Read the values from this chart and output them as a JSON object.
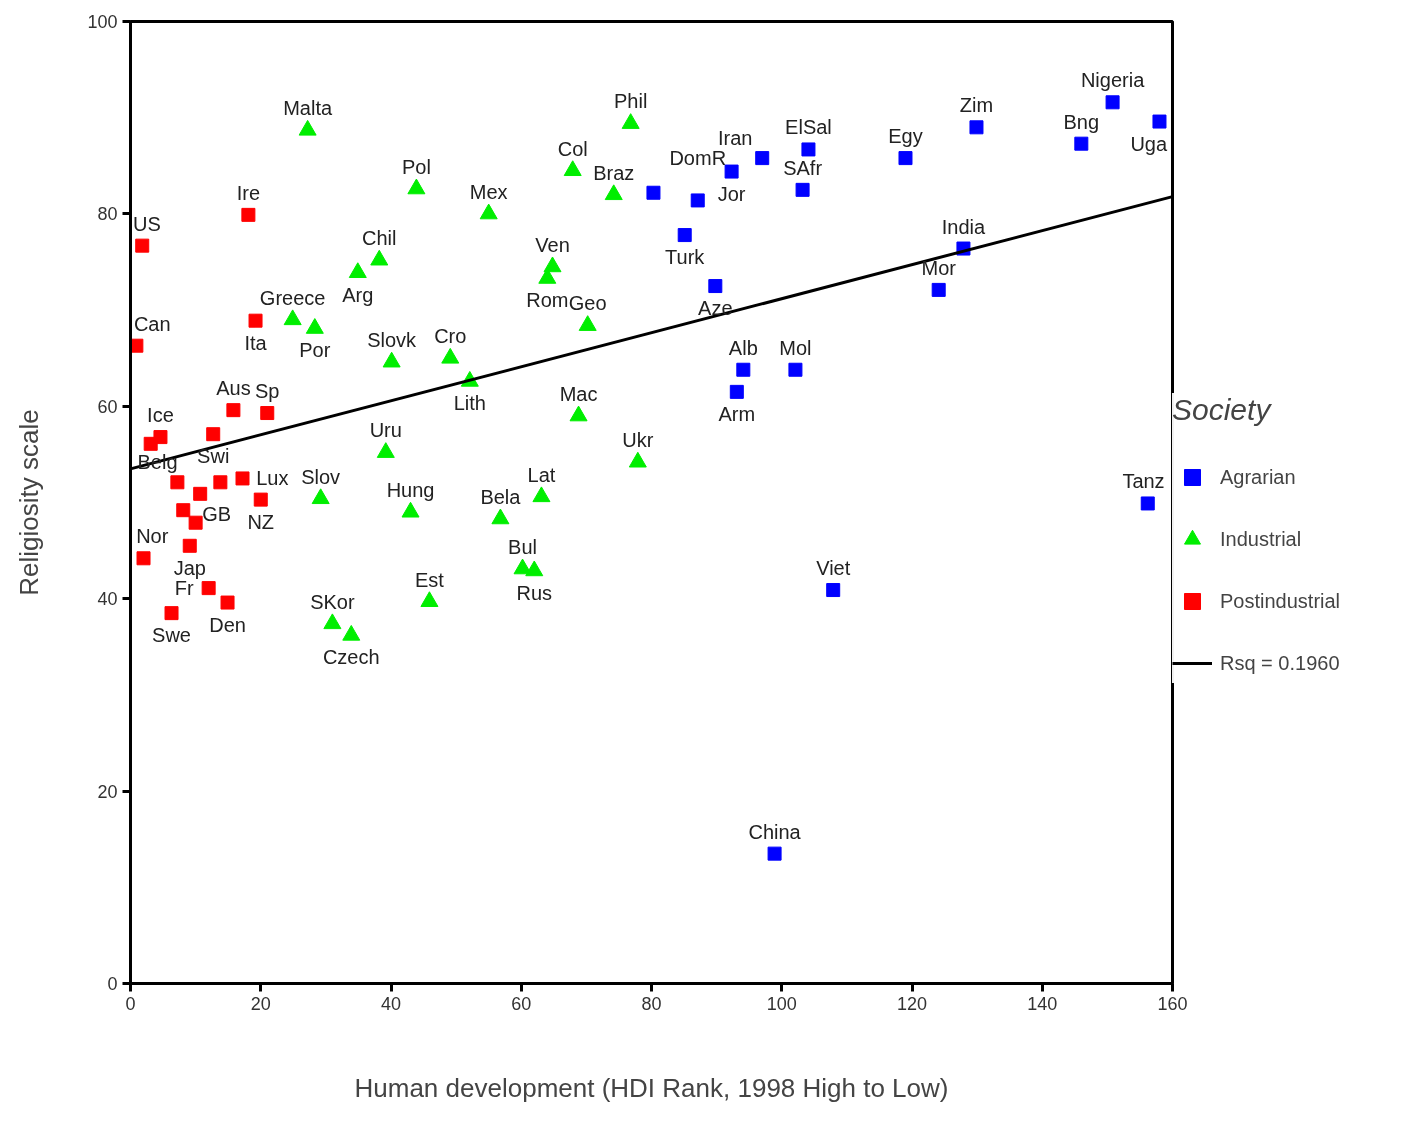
{
  "chart_data": {
    "type": "scatter",
    "xlabel": "Human development (HDI Rank, 1998 High to Low)",
    "ylabel": "Religiosity scale",
    "legend_title": "Society",
    "legend": "right",
    "grid": false,
    "xlim": [
      0,
      160
    ],
    "ylim": [
      0,
      100
    ],
    "xticks": [
      0,
      20,
      40,
      60,
      80,
      100,
      120,
      140,
      160
    ],
    "yticks": [
      0,
      20,
      40,
      60,
      80,
      100
    ],
    "series": [
      {
        "name": "Agrarian",
        "color": "#0000ff",
        "marker": "square",
        "x": [
          150.8,
          158.0,
          146.0,
          129.9,
          119.0,
          104.1,
          97.0,
          103.2,
          92.3,
          80.3,
          87.1,
          85.1,
          89.8,
          127.9,
          124.1,
          94.1,
          93.1,
          102.1,
          156.2,
          107.9,
          98.9
        ],
        "values": [
          91.6,
          89.6,
          87.3,
          89.0,
          85.8,
          86.7,
          85.8,
          82.5,
          84.4,
          82.2,
          81.4,
          77.8,
          72.5,
          76.4,
          72.1,
          63.8,
          61.5,
          63.8,
          49.9,
          40.9,
          13.5
        ]
      },
      {
        "name": "Industrial",
        "color": "#00ee00",
        "marker": "triangle",
        "x": [
          27.2,
          76.8,
          67.9,
          74.2,
          43.9,
          55.0,
          38.2,
          34.9,
          64.8,
          64.0,
          70.2,
          24.9,
          28.3,
          40.1,
          49.1,
          52.1,
          68.8,
          39.2,
          77.9,
          29.2,
          63.1,
          43.0,
          56.8,
          60.2,
          62.0,
          45.9,
          31.0,
          33.9
        ],
        "values": [
          88.7,
          89.4,
          84.5,
          82.0,
          82.6,
          80.0,
          75.2,
          73.9,
          74.5,
          73.3,
          68.4,
          69.0,
          68.1,
          64.6,
          65.0,
          62.6,
          59.0,
          55.2,
          54.2,
          50.4,
          50.6,
          49.0,
          48.3,
          43.1,
          42.9,
          39.7,
          37.4,
          36.2
        ]
      },
      {
        "name": "Postindustrial",
        "color": "#ff0000",
        "marker": "square",
        "x": [
          18.1,
          1.8,
          19.2,
          0.9,
          15.8,
          21.0,
          4.6,
          3.1,
          12.7,
          7.2,
          13.8,
          17.2,
          20.0,
          10.7,
          8.1,
          10.0,
          9.1,
          2.0,
          12.0,
          14.9,
          6.3
        ],
        "values": [
          79.9,
          76.7,
          68.9,
          66.3,
          59.6,
          59.3,
          56.8,
          56.1,
          57.1,
          52.1,
          52.1,
          52.5,
          50.3,
          50.9,
          49.2,
          47.9,
          45.5,
          44.2,
          41.1,
          39.6,
          38.5
        ]
      },
      {
        "type": "line",
        "color": "#000000",
        "x": [
          0,
          160
        ],
        "values": [
          53.5,
          81.8
        ]
      }
    ],
    "annotations": [
      {
        "text": "Nigeria",
        "x": 150.8,
        "y": 91.6
      },
      {
        "text": "Uga",
        "x": 158.0,
        "y": 89.6
      },
      {
        "text": "Bng",
        "x": 146.0,
        "y": 87.3
      },
      {
        "text": "Zim",
        "x": 129.9,
        "y": 89.0
      },
      {
        "text": "Egy",
        "x": 119.0,
        "y": 85.8
      },
      {
        "text": "ElSal",
        "x": 104.1,
        "y": 86.7
      },
      {
        "text": "Iran",
        "x": 97.0,
        "y": 85.8
      },
      {
        "text": "SAfr",
        "x": 103.2,
        "y": 82.5
      },
      {
        "text": "Jor",
        "x": 92.3,
        "y": 84.4
      },
      {
        "text": "DomR",
        "x": 87.1,
        "y": 81.4
      },
      {
        "text": "Turk",
        "x": 85.1,
        "y": 77.8
      },
      {
        "text": "Aze",
        "x": 89.8,
        "y": 72.5
      },
      {
        "text": "India",
        "x": 127.9,
        "y": 76.4
      },
      {
        "text": "Mor",
        "x": 124.1,
        "y": 72.1
      },
      {
        "text": "Alb",
        "x": 94.1,
        "y": 63.8
      },
      {
        "text": "Arm",
        "x": 93.1,
        "y": 61.5
      },
      {
        "text": "Mol",
        "x": 102.1,
        "y": 63.8
      },
      {
        "text": "Tanz",
        "x": 156.2,
        "y": 49.9
      },
      {
        "text": "Viet",
        "x": 107.9,
        "y": 40.9
      },
      {
        "text": "China",
        "x": 98.9,
        "y": 13.5
      },
      {
        "text": "Malta",
        "x": 27.2,
        "y": 88.7
      },
      {
        "text": "Phil",
        "x": 76.8,
        "y": 89.4
      },
      {
        "text": "Col",
        "x": 67.9,
        "y": 84.5
      },
      {
        "text": "Braz",
        "x": 74.2,
        "y": 82.0
      },
      {
        "text": "Pol",
        "x": 43.9,
        "y": 82.6
      },
      {
        "text": "Mex",
        "x": 55.0,
        "y": 80.0
      },
      {
        "text": "Chil",
        "x": 38.2,
        "y": 75.2
      },
      {
        "text": "Arg",
        "x": 34.9,
        "y": 73.9
      },
      {
        "text": "Ven",
        "x": 64.8,
        "y": 74.5
      },
      {
        "text": "Rom",
        "x": 64.0,
        "y": 73.3
      },
      {
        "text": "Geo",
        "x": 70.2,
        "y": 68.4
      },
      {
        "text": "Greece",
        "x": 24.9,
        "y": 69.0
      },
      {
        "text": "Por",
        "x": 28.3,
        "y": 68.1
      },
      {
        "text": "Slovk",
        "x": 40.1,
        "y": 64.6
      },
      {
        "text": "Cro",
        "x": 49.1,
        "y": 65.0
      },
      {
        "text": "Lith",
        "x": 52.1,
        "y": 62.6
      },
      {
        "text": "Mac",
        "x": 68.8,
        "y": 59.0
      },
      {
        "text": "Uru",
        "x": 39.2,
        "y": 55.2
      },
      {
        "text": "Ukr",
        "x": 77.9,
        "y": 54.2
      },
      {
        "text": "Slov",
        "x": 29.2,
        "y": 50.4
      },
      {
        "text": "Lat",
        "x": 63.1,
        "y": 50.6
      },
      {
        "text": "Hung",
        "x": 43.0,
        "y": 49.0
      },
      {
        "text": "Bela",
        "x": 56.8,
        "y": 48.3
      },
      {
        "text": "Bul",
        "x": 60.2,
        "y": 43.1
      },
      {
        "text": "Rus",
        "x": 62.0,
        "y": 42.9
      },
      {
        "text": "Est",
        "x": 45.9,
        "y": 39.7
      },
      {
        "text": "SKor",
        "x": 31.0,
        "y": 37.4
      },
      {
        "text": "Czech",
        "x": 33.9,
        "y": 36.2
      },
      {
        "text": "Ire",
        "x": 18.1,
        "y": 79.9
      },
      {
        "text": "US",
        "x": 1.8,
        "y": 76.7
      },
      {
        "text": "Ita",
        "x": 19.2,
        "y": 68.9
      },
      {
        "text": "Can",
        "x": 0.9,
        "y": 66.3
      },
      {
        "text": "Aus",
        "x": 15.8,
        "y": 59.6
      },
      {
        "text": "Sp",
        "x": 21.0,
        "y": 59.3
      },
      {
        "text": "Ice",
        "x": 4.6,
        "y": 56.8
      },
      {
        "text": "Swi",
        "x": 12.7,
        "y": 57.1
      },
      {
        "text": "Belg",
        "x": 7.2,
        "y": 52.1
      },
      {
        "text": "Lux",
        "x": 17.2,
        "y": 52.5
      },
      {
        "text": "NZ",
        "x": 20.0,
        "y": 50.3
      },
      {
        "text": "GB",
        "x": 10.7,
        "y": 50.9
      },
      {
        "text": "Jap",
        "x": 9.1,
        "y": 45.5
      },
      {
        "text": "Nor",
        "x": 2.0,
        "y": 44.2
      },
      {
        "text": "Fr",
        "x": 12.0,
        "y": 41.1
      },
      {
        "text": "Den",
        "x": 14.9,
        "y": 39.6
      },
      {
        "text": "Swe",
        "x": 6.3,
        "y": 38.5
      },
      "Rsq = 0.1960"
    ]
  }
}
